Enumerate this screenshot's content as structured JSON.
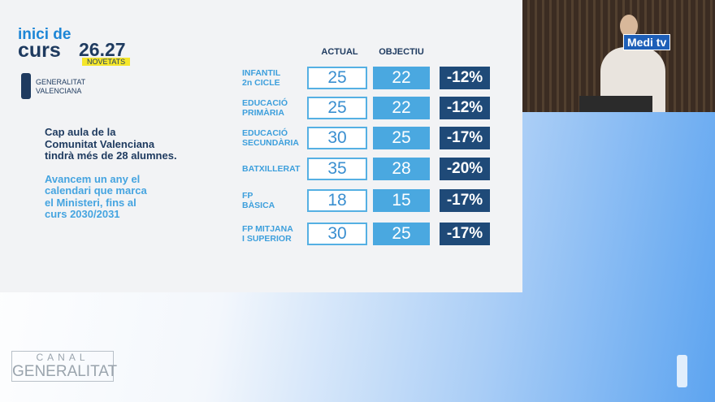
{
  "logo": {
    "line1": "inici de",
    "line2": "curs",
    "year": "26.27",
    "tag": "NOVETATS"
  },
  "institution": {
    "line1": "GENERALITAT",
    "line2": "VALENCIANA"
  },
  "notes": [
    {
      "lines": [
        "Cap aula de la",
        "Comunitat Valenciana",
        "tindrà més de 28 alumnes."
      ]
    },
    {
      "lines": [
        "Avancem un any el",
        "calendari que marca",
        "el Ministeri, fins al",
        "curs 2030/2031"
      ]
    }
  ],
  "table": {
    "headers": [
      "ACTUAL",
      "OBJECTIU"
    ],
    "rows": [
      {
        "label": [
          "INFANTIL",
          "2n CICLE"
        ],
        "actual": "25",
        "target": "22",
        "change": "-12%"
      },
      {
        "label": [
          "EDUCACIÓ",
          "PRIMÀRIA"
        ],
        "actual": "25",
        "target": "22",
        "change": "-12%"
      },
      {
        "label": [
          "EDUCACIÓ",
          "SECUNDÀRIA"
        ],
        "actual": "30",
        "target": "25",
        "change": "-17%"
      },
      {
        "label": [
          "BATXILLERAT"
        ],
        "actual": "35",
        "target": "28",
        "change": "-20%"
      },
      {
        "label": [
          "FP",
          "BÀSICA"
        ],
        "actual": "18",
        "target": "15",
        "change": "-17%"
      },
      {
        "label": [
          "FP MITJANA",
          "I SUPERIOR"
        ],
        "actual": "30",
        "target": "25",
        "change": "-17%"
      }
    ]
  },
  "channel_logo": {
    "part1": "Medi",
    "part2": "tv"
  },
  "watermark": {
    "line1": "CANAL",
    "line2": "GENERALITAT"
  }
}
